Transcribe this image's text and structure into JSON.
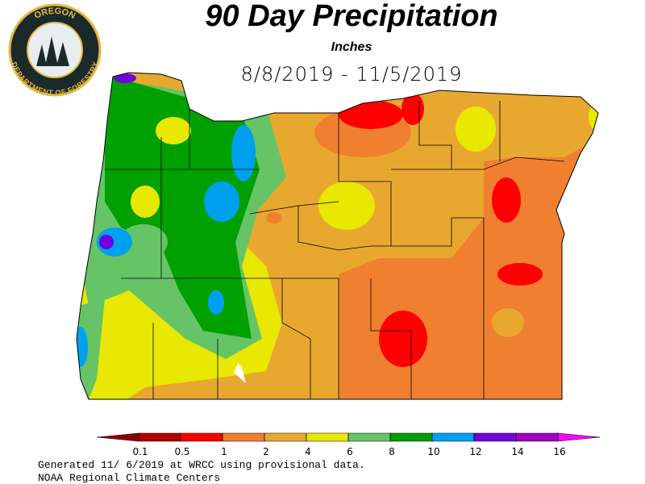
{
  "logo": {
    "top": "OREGON",
    "bottom": "DEPARTMENT OF FORESTRY"
  },
  "title": "90 Day Precipitation",
  "subtitle": "Inches",
  "date_range": "8/8/2019 - 11/5/2019",
  "legend": {
    "ticks": [
      0.1,
      0.5,
      1,
      2,
      4,
      6,
      8,
      10,
      12,
      14,
      16
    ],
    "colors": [
      "#8b0000",
      "#b00000",
      "#ff0000",
      "#f08030",
      "#e8a830",
      "#e8e800",
      "#66c466",
      "#00a000",
      "#00a0f0",
      "#7000e0",
      "#a000c0",
      "#ff00ff"
    ]
  },
  "footer": [
    "Generated 11/ 6/2019 at WRCC using provisional data.",
    "NOAA Regional Climate Centers"
  ]
}
